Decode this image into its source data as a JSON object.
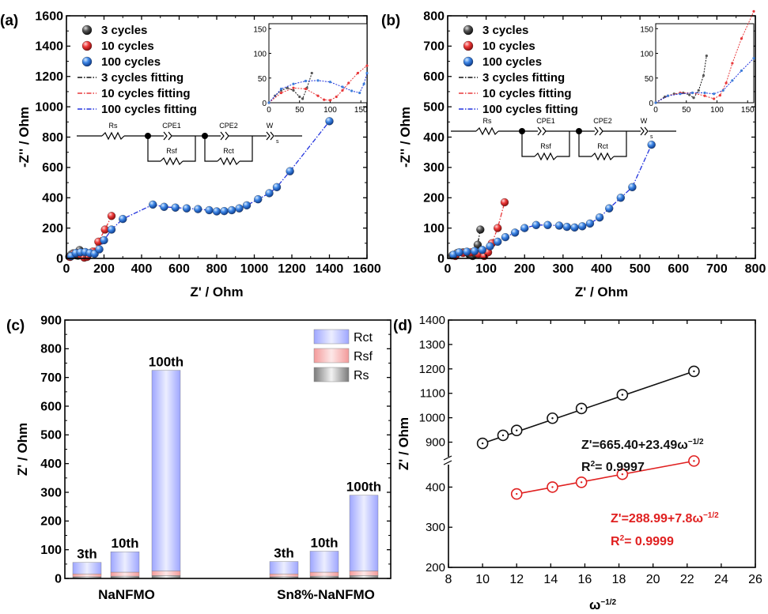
{
  "chart_data": [
    {
      "panel": "(a)",
      "type": "scatter",
      "xlabel": "Z' / Ohm",
      "ylabel": "-Z'' / Ohm",
      "xlim": [
        0,
        1600
      ],
      "ylim": [
        0,
        1600
      ],
      "xticks": [
        "0",
        "200",
        "400",
        "600",
        "800",
        "1000",
        "1200",
        "1400",
        "1600"
      ],
      "yticks": [
        "0",
        "200",
        "400",
        "600",
        "800",
        "1000",
        "1200",
        "1400",
        "1600"
      ],
      "legend": [
        "3 cycles",
        "10 cycles",
        "100 cycles",
        "3 cycles fitting",
        "10 cycles fitting",
        "100 cycles fitting"
      ],
      "series": [
        {
          "name": "3 cycles",
          "color": "#3a3a3a",
          "x": [
            15,
            25,
            35,
            45,
            55,
            62,
            70
          ],
          "y": [
            12,
            25,
            33,
            32,
            20,
            18,
            55
          ]
        },
        {
          "name": "10 cycles",
          "color": "#e8393b",
          "x": [
            20,
            40,
            60,
            80,
            95,
            110,
            140,
            170,
            205,
            240
          ],
          "y": [
            10,
            30,
            35,
            20,
            5,
            10,
            45,
            110,
            190,
            280
          ]
        },
        {
          "name": "100 cycles",
          "color": "#3d7fd9",
          "x": [
            25,
            50,
            75,
            100,
            125,
            150,
            175,
            200,
            240,
            300,
            460,
            520,
            580,
            640,
            700,
            760,
            800,
            840,
            880,
            920,
            960,
            1020,
            1080,
            1120,
            1190,
            1400
          ],
          "y": [
            15,
            35,
            40,
            42,
            35,
            30,
            60,
            120,
            190,
            260,
            355,
            340,
            335,
            330,
            325,
            318,
            310,
            312,
            318,
            330,
            350,
            390,
            430,
            470,
            575,
            905
          ]
        }
      ],
      "inset": {
        "xlim": [
          0,
          160
        ],
        "ylim": [
          0,
          160
        ],
        "xticks": [
          "0",
          "50",
          "100",
          "150"
        ],
        "yticks": [
          "0",
          "50",
          "100",
          "150"
        ],
        "series": [
          {
            "name": "3 cycles",
            "x": [
              0,
              10,
              20,
              30,
              40,
              50,
              55,
              62,
              70
            ],
            "y": [
              0,
              14,
              25,
              30,
              25,
              12,
              8,
              30,
              60
            ]
          },
          {
            "name": "10 cycles",
            "x": [
              0,
              20,
              40,
              60,
              80,
              90,
              100,
              110,
              120,
              130,
              145,
              160
            ],
            "y": [
              0,
              20,
              30,
              28,
              14,
              6,
              5,
              12,
              25,
              40,
              60,
              75
            ]
          },
          {
            "name": "100 cycles",
            "x": [
              0,
              20,
              40,
              60,
              80,
              100,
              120,
              135,
              148,
              155,
              160
            ],
            "y": [
              0,
              28,
              38,
              44,
              45,
              42,
              32,
              24,
              20,
              38,
              60
            ]
          }
        ]
      },
      "circuit": {
        "labels": [
          "Rs",
          "CPE1",
          "Rsf",
          "CPE2",
          "Rct",
          "W",
          "s"
        ]
      }
    },
    {
      "panel": "(b)",
      "type": "scatter",
      "xlabel": "Z' / Ohm",
      "ylabel": "-Z'' / Ohm",
      "xlim": [
        0,
        800
      ],
      "ylim": [
        0,
        800
      ],
      "xticks": [
        "0",
        "100",
        "200",
        "300",
        "400",
        "500",
        "600",
        "700",
        "800"
      ],
      "yticks": [
        "0",
        "100",
        "200",
        "300",
        "400",
        "500",
        "600",
        "700",
        "800"
      ],
      "legend": [
        "3 cycles",
        "10 cycles",
        "100 cycles",
        "3 cycles fitting",
        "10 cycles fitting",
        "100 cycles fitting"
      ],
      "series": [
        {
          "name": "3 cycles",
          "color": "#3a3a3a",
          "x": [
            12,
            25,
            40,
            55,
            65,
            72,
            78,
            85
          ],
          "y": [
            10,
            18,
            20,
            15,
            8,
            15,
            45,
            95
          ]
        },
        {
          "name": "10 cycles",
          "color": "#e8393b",
          "x": [
            20,
            40,
            60,
            80,
            95,
            105,
            115,
            130,
            148
          ],
          "y": [
            8,
            18,
            20,
            15,
            8,
            20,
            50,
            100,
            185
          ]
        },
        {
          "name": "100 cycles",
          "color": "#3d7fd9",
          "x": [
            15,
            30,
            50,
            70,
            90,
            110,
            130,
            150,
            175,
            200,
            230,
            260,
            290,
            310,
            330,
            350,
            370,
            395,
            420,
            450,
            480,
            530
          ],
          "y": [
            12,
            20,
            22,
            24,
            28,
            40,
            55,
            70,
            85,
            100,
            110,
            110,
            108,
            104,
            102,
            106,
            115,
            135,
            165,
            200,
            235,
            375
          ]
        }
      ],
      "inset": {
        "xlim": [
          0,
          160
        ],
        "ylim": [
          0,
          160
        ],
        "xticks": [
          "0",
          "50",
          "100",
          "150"
        ],
        "yticks": [
          "0",
          "50",
          "100",
          "150"
        ],
        "series": [
          {
            "name": "3 cycles",
            "x": [
              0,
              15,
              30,
              45,
              55,
              62,
              70,
              78,
              83
            ],
            "y": [
              0,
              12,
              18,
              20,
              16,
              10,
              25,
              55,
              95
            ]
          },
          {
            "name": "10 cycles",
            "x": [
              0,
              20,
              40,
              60,
              80,
              95,
              105,
              115,
              125,
              140,
              160
            ],
            "y": [
              0,
              14,
              20,
              20,
              14,
              8,
              15,
              40,
              80,
              130,
              185
            ]
          },
          {
            "name": "100 cycles",
            "x": [
              0,
              20,
              40,
              60,
              80,
              95,
              110,
              125,
              140,
              160
            ],
            "y": [
              0,
              14,
              18,
              20,
              20,
              18,
              25,
              45,
              65,
              90
            ]
          }
        ]
      },
      "circuit": {
        "labels": [
          "Rs",
          "CPE1",
          "Rsf",
          "CPE2",
          "Rct",
          "W",
          "s"
        ]
      }
    },
    {
      "panel": "(c)",
      "type": "bar",
      "stacked": true,
      "ylabel": "Z' / Ohm",
      "ylim": [
        0,
        900
      ],
      "yticks": [
        "0",
        "100",
        "200",
        "300",
        "400",
        "500",
        "600",
        "700",
        "800",
        "900"
      ],
      "groups": [
        "NaNFMO",
        "Sn8%-NaNFMO"
      ],
      "legend": [
        "Rct",
        "Rsf",
        "Rs"
      ],
      "bars": [
        {
          "group": 0,
          "label": "3th",
          "Rs": 6,
          "Rsf": 10,
          "Rct": 40
        },
        {
          "group": 0,
          "label": "10th",
          "Rs": 8,
          "Rsf": 14,
          "Rct": 71
        },
        {
          "group": 0,
          "label": "100th",
          "Rs": 10,
          "Rsf": 16,
          "Rct": 699
        },
        {
          "group": 1,
          "label": "3th",
          "Rs": 6,
          "Rsf": 10,
          "Rct": 43
        },
        {
          "group": 1,
          "label": "10th",
          "Rs": 8,
          "Rsf": 14,
          "Rct": 73
        },
        {
          "group": 1,
          "label": "100th",
          "Rs": 10,
          "Rsf": 16,
          "Rct": 264
        }
      ],
      "colors": {
        "Rct": "#b3b8ff",
        "Rsf": "#f4a9a9",
        "Rs": "#9a9a9a"
      }
    },
    {
      "panel": "(d)",
      "type": "scatter",
      "xlabel": "ω",
      "xlabel_sup": "−1/2",
      "ylabel": "Z' / Ohm",
      "xlim": [
        8,
        26
      ],
      "xticks": [
        "8",
        "10",
        "12",
        "14",
        "16",
        "18",
        "20",
        "22",
        "24",
        "26"
      ],
      "yticks_upper": [
        "900",
        "1000",
        "1100",
        "1200",
        "1300",
        "1400"
      ],
      "yticks_lower": [
        "200",
        "300",
        "400"
      ],
      "series": [
        {
          "name": "NaNFMO",
          "color": "#111111",
          "x": [
            10,
            11.2,
            12,
            14.1,
            15.8,
            18.2,
            22.4
          ],
          "y": [
            895,
            928,
            948,
            998,
            1038,
            1094,
            1190
          ]
        },
        {
          "name": "Sn8%-NaNFMO",
          "color": "#e02020",
          "x": [
            12,
            14.1,
            15.8,
            18.2,
            22.4
          ],
          "y": [
            383,
            400,
            412,
            432,
            465
          ]
        }
      ],
      "annotations": [
        {
          "text": "Z'=665.40+23.49ω",
          "sup": "−1/2",
          "color": "#111111"
        },
        {
          "text": "R",
          "sup": "2",
          "rest": "= 0.9997",
          "color": "#111111"
        },
        {
          "text": "Z'=288.99+7.8ω",
          "sup": "−1/2",
          "color": "#e02020"
        },
        {
          "text": "R",
          "sup": "2",
          "rest": "= 0.9999",
          "color": "#e02020"
        }
      ]
    }
  ]
}
